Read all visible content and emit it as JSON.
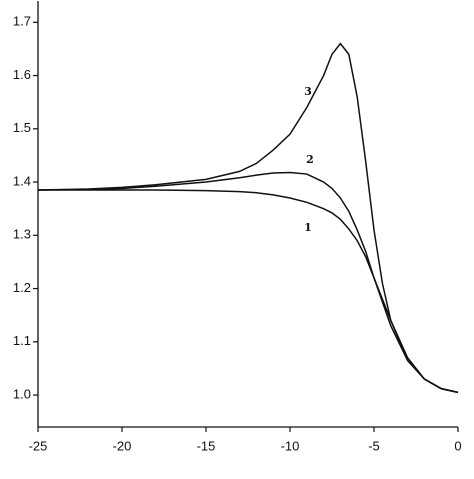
{
  "chart_data": {
    "type": "line",
    "x": [
      -25,
      -22,
      -20,
      -18,
      -15,
      -13,
      -12,
      -11,
      -10,
      -9,
      -8,
      -7.5,
      -7,
      -6.5,
      -6,
      -5.5,
      -5,
      -4.5,
      -4,
      -3,
      -2,
      -1,
      0
    ],
    "series": [
      {
        "name": "1",
        "color": "#111111",
        "values": [
          1.385,
          1.385,
          1.385,
          1.385,
          1.384,
          1.382,
          1.38,
          1.376,
          1.37,
          1.362,
          1.35,
          1.342,
          1.33,
          1.312,
          1.29,
          1.26,
          1.22,
          1.18,
          1.14,
          1.07,
          1.03,
          1.012,
          1.005
        ]
      },
      {
        "name": "2",
        "color": "#111111",
        "values": [
          1.385,
          1.386,
          1.388,
          1.392,
          1.4,
          1.408,
          1.413,
          1.417,
          1.418,
          1.415,
          1.4,
          1.388,
          1.37,
          1.345,
          1.31,
          1.27,
          1.22,
          1.175,
          1.13,
          1.065,
          1.03,
          1.012,
          1.005
        ]
      },
      {
        "name": "3",
        "color": "#111111",
        "values": [
          1.385,
          1.387,
          1.39,
          1.395,
          1.405,
          1.42,
          1.435,
          1.46,
          1.49,
          1.54,
          1.6,
          1.64,
          1.66,
          1.64,
          1.56,
          1.44,
          1.31,
          1.21,
          1.14,
          1.065,
          1.03,
          1.012,
          1.005
        ]
      }
    ],
    "xlim": [
      -25,
      0
    ],
    "xticks": [
      -25,
      -20,
      -15,
      -10,
      -5,
      0
    ],
    "ylim": [
      0.94,
      1.74
    ],
    "yticks": [
      {
        "value": 1.0,
        "label": "1.0"
      },
      1.1,
      1.2,
      1.3,
      1.4,
      1.5,
      1.6,
      1.7
    ],
    "grid": false
  }
}
